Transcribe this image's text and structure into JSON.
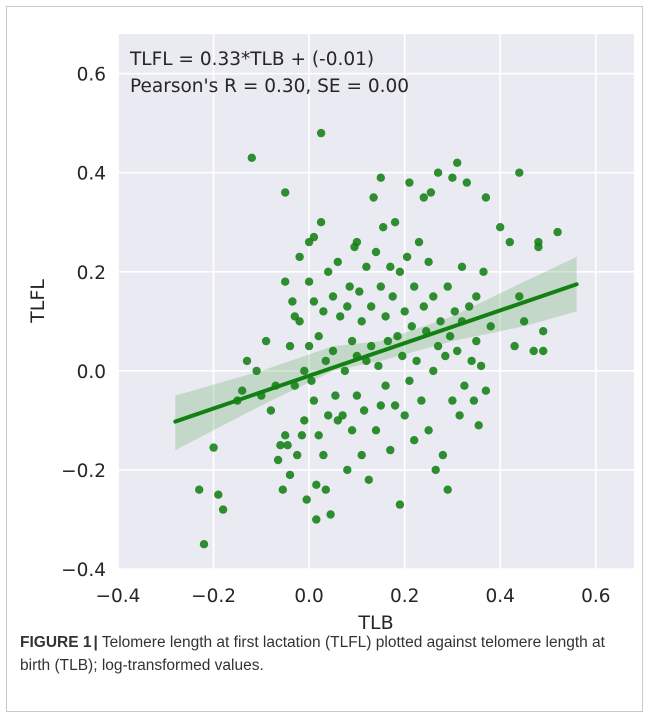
{
  "figure": {
    "label": "FIGURE 1",
    "separator": "|",
    "caption": "Telomere length at first lactation (TLFL) plotted against telomere length at birth (TLB); log-transformed values."
  },
  "colors": {
    "background": "#EAEAF2",
    "grid": "#FFFFFF",
    "points": "#138013",
    "line": "#138013",
    "band": "#7FB87F"
  },
  "chart_data": {
    "type": "scatter",
    "xlabel": "TLB",
    "ylabel": "TLFL",
    "xlim": [
      -0.4,
      0.68
    ],
    "ylim": [
      -0.4,
      0.68
    ],
    "xticks": [
      -0.4,
      -0.2,
      0.0,
      0.2,
      0.4,
      0.6
    ],
    "yticks": [
      -0.4,
      -0.2,
      0.0,
      0.2,
      0.4,
      0.6
    ],
    "xtick_labels": [
      "−0.4",
      "−0.2",
      "0.0",
      "0.2",
      "0.4",
      "0.6"
    ],
    "ytick_labels": [
      "−0.4",
      "−0.2",
      "0.0",
      "0.2",
      "0.4",
      "0.6"
    ],
    "grid": true,
    "annotation": [
      "TLFL = 0.33*TLB + (-0.01)",
      "Pearson's R = 0.30, SE = 0.00"
    ],
    "regression": {
      "slope": 0.33,
      "intercept": -0.01,
      "x_range": [
        -0.28,
        0.56
      ]
    },
    "confidence_band": [
      {
        "x": -0.28,
        "lo": -0.16,
        "hi": -0.05
      },
      {
        "x": -0.1,
        "lo": -0.07,
        "hi": 0.0
      },
      {
        "x": 0.05,
        "lo": 0.0,
        "hi": 0.05
      },
      {
        "x": 0.15,
        "lo": 0.02,
        "hi": 0.06
      },
      {
        "x": 0.3,
        "lo": 0.06,
        "hi": 0.11
      },
      {
        "x": 0.45,
        "lo": 0.09,
        "hi": 0.18
      },
      {
        "x": 0.56,
        "lo": 0.12,
        "hi": 0.23
      }
    ],
    "points": [
      [
        -0.23,
        -0.24
      ],
      [
        -0.22,
        -0.35
      ],
      [
        -0.2,
        -0.155
      ],
      [
        -0.19,
        -0.25
      ],
      [
        -0.18,
        -0.28
      ],
      [
        -0.15,
        -0.06
      ],
      [
        -0.14,
        -0.04
      ],
      [
        -0.13,
        0.02
      ],
      [
        -0.12,
        0.43
      ],
      [
        -0.11,
        0.0
      ],
      [
        -0.1,
        -0.05
      ],
      [
        -0.09,
        0.06
      ],
      [
        -0.08,
        -0.08
      ],
      [
        -0.07,
        -0.03
      ],
      [
        -0.065,
        -0.18
      ],
      [
        -0.06,
        -0.15
      ],
      [
        -0.055,
        -0.24
      ],
      [
        -0.05,
        0.36
      ],
      [
        -0.05,
        0.18
      ],
      [
        -0.05,
        -0.13
      ],
      [
        -0.045,
        -0.15
      ],
      [
        -0.04,
        0.05
      ],
      [
        -0.04,
        -0.21
      ],
      [
        -0.035,
        0.14
      ],
      [
        -0.03,
        -0.03
      ],
      [
        -0.03,
        0.11
      ],
      [
        -0.025,
        -0.17
      ],
      [
        -0.02,
        0.23
      ],
      [
        -0.02,
        0.1
      ],
      [
        -0.015,
        -0.13
      ],
      [
        -0.01,
        0.0
      ],
      [
        -0.01,
        -0.1
      ],
      [
        -0.005,
        -0.26
      ],
      [
        0.0,
        0.26
      ],
      [
        0.0,
        0.18
      ],
      [
        0.0,
        0.05
      ],
      [
        0.005,
        -0.02
      ],
      [
        0.01,
        0.14
      ],
      [
        0.01,
        0.27
      ],
      [
        0.01,
        -0.06
      ],
      [
        0.015,
        -0.3
      ],
      [
        0.015,
        -0.23
      ],
      [
        0.02,
        0.07
      ],
      [
        0.02,
        -0.13
      ],
      [
        0.025,
        0.3
      ],
      [
        0.025,
        0.48
      ],
      [
        0.03,
        0.12
      ],
      [
        0.03,
        -0.17
      ],
      [
        0.035,
        -0.24
      ],
      [
        0.035,
        0.02
      ],
      [
        0.04,
        -0.09
      ],
      [
        0.04,
        0.2
      ],
      [
        0.045,
        -0.29
      ],
      [
        0.05,
        0.04
      ],
      [
        0.05,
        0.15
      ],
      [
        0.055,
        -0.05
      ],
      [
        0.06,
        0.22
      ],
      [
        0.06,
        -0.1
      ],
      [
        0.065,
        0.11
      ],
      [
        0.07,
        -0.09
      ],
      [
        0.075,
        0.0
      ],
      [
        0.08,
        0.13
      ],
      [
        0.08,
        -0.2
      ],
      [
        0.085,
        0.17
      ],
      [
        0.09,
        -0.12
      ],
      [
        0.09,
        0.06
      ],
      [
        0.095,
        0.25
      ],
      [
        0.1,
        0.26
      ],
      [
        0.1,
        0.03
      ],
      [
        0.1,
        -0.05
      ],
      [
        0.105,
        0.16
      ],
      [
        0.11,
        -0.17
      ],
      [
        0.11,
        0.1
      ],
      [
        0.115,
        -0.08
      ],
      [
        0.12,
        0.02
      ],
      [
        0.12,
        0.21
      ],
      [
        0.125,
        -0.22
      ],
      [
        0.13,
        0.13
      ],
      [
        0.13,
        0.05
      ],
      [
        0.135,
        0.35
      ],
      [
        0.14,
        -0.12
      ],
      [
        0.14,
        0.24
      ],
      [
        0.145,
        0.01
      ],
      [
        0.15,
        0.39
      ],
      [
        0.15,
        0.17
      ],
      [
        0.15,
        -0.07
      ],
      [
        0.155,
        0.29
      ],
      [
        0.16,
        0.11
      ],
      [
        0.16,
        -0.03
      ],
      [
        0.165,
        0.06
      ],
      [
        0.17,
        0.21
      ],
      [
        0.17,
        -0.16
      ],
      [
        0.175,
        0.15
      ],
      [
        0.18,
        0.3
      ],
      [
        0.18,
        -0.07
      ],
      [
        0.185,
        0.07
      ],
      [
        0.19,
        0.2
      ],
      [
        0.19,
        -0.27
      ],
      [
        0.195,
        0.03
      ],
      [
        0.2,
        0.12
      ],
      [
        0.2,
        -0.09
      ],
      [
        0.205,
        0.23
      ],
      [
        0.21,
        -0.02
      ],
      [
        0.21,
        0.38
      ],
      [
        0.215,
        0.09
      ],
      [
        0.22,
        0.17
      ],
      [
        0.22,
        -0.14
      ],
      [
        0.225,
        0.02
      ],
      [
        0.23,
        0.26
      ],
      [
        0.235,
        -0.06
      ],
      [
        0.24,
        0.13
      ],
      [
        0.24,
        0.35
      ],
      [
        0.245,
        0.08
      ],
      [
        0.25,
        -0.12
      ],
      [
        0.25,
        0.22
      ],
      [
        0.255,
        0.36
      ],
      [
        0.26,
        0.0
      ],
      [
        0.26,
        0.15
      ],
      [
        0.265,
        -0.2
      ],
      [
        0.27,
        0.4
      ],
      [
        0.27,
        0.05
      ],
      [
        0.275,
        0.1
      ],
      [
        0.28,
        -0.17
      ],
      [
        0.285,
        0.03
      ],
      [
        0.29,
        0.17
      ],
      [
        0.29,
        -0.24
      ],
      [
        0.295,
        0.07
      ],
      [
        0.3,
        0.39
      ],
      [
        0.3,
        -0.06
      ],
      [
        0.305,
        0.12
      ],
      [
        0.31,
        0.42
      ],
      [
        0.31,
        0.04
      ],
      [
        0.315,
        -0.09
      ],
      [
        0.32,
        0.21
      ],
      [
        0.32,
        0.1
      ],
      [
        0.325,
        -0.03
      ],
      [
        0.33,
        0.38
      ],
      [
        0.335,
        0.13
      ],
      [
        0.34,
        0.02
      ],
      [
        0.345,
        -0.06
      ],
      [
        0.35,
        0.15
      ],
      [
        0.35,
        0.06
      ],
      [
        0.355,
        -0.11
      ],
      [
        0.36,
        0.01
      ],
      [
        0.365,
        0.2
      ],
      [
        0.37,
        0.35
      ],
      [
        0.37,
        -0.04
      ],
      [
        0.38,
        0.09
      ],
      [
        0.4,
        0.29
      ],
      [
        0.42,
        0.26
      ],
      [
        0.43,
        0.05
      ],
      [
        0.44,
        0.4
      ],
      [
        0.44,
        0.15
      ],
      [
        0.45,
        0.1
      ],
      [
        0.47,
        0.04
      ],
      [
        0.48,
        0.26
      ],
      [
        0.48,
        0.25
      ],
      [
        0.49,
        0.04
      ],
      [
        0.49,
        0.08
      ],
      [
        0.52,
        0.28
      ]
    ]
  }
}
